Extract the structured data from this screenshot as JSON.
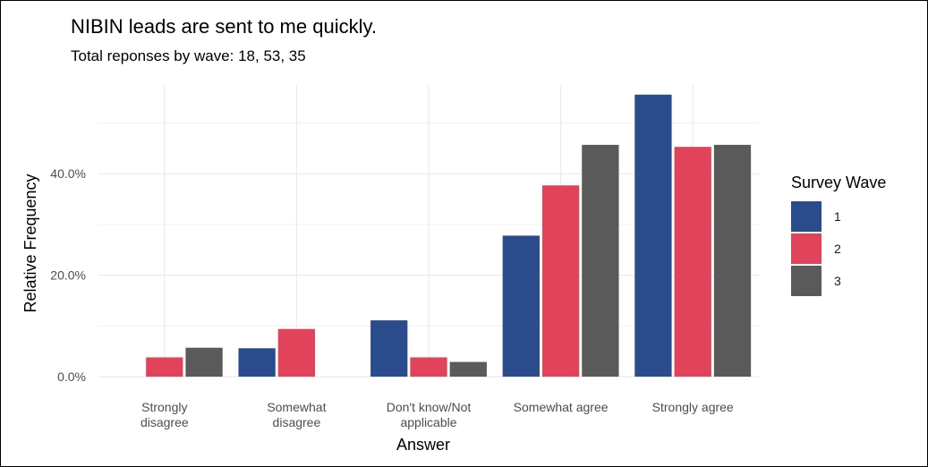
{
  "chart_data": {
    "type": "bar",
    "title": "NIBIN leads are sent to me quickly.",
    "subtitle": "Total reponses by wave: 18, 53, 35",
    "xlabel": "Answer",
    "ylabel": "Relative Frequency",
    "categories": [
      [
        "Strongly",
        "disagree"
      ],
      [
        "Somewhat",
        "disagree"
      ],
      [
        "Don't know/Not",
        "applicable"
      ],
      [
        "Somewhat agree"
      ],
      [
        "Strongly agree"
      ]
    ],
    "series": [
      {
        "name": "1",
        "color": "#2b4c8c",
        "values": [
          0,
          5.6,
          11.1,
          27.8,
          55.6
        ]
      },
      {
        "name": "2",
        "color": "#e0435a",
        "values": [
          3.8,
          9.4,
          3.8,
          37.7,
          45.3
        ]
      },
      {
        "name": "3",
        "color": "#5a5a5a",
        "values": [
          5.7,
          0,
          2.9,
          45.7,
          45.7
        ]
      }
    ],
    "yticks": [
      "0.0%",
      "20.0%",
      "40.0%"
    ],
    "ylim": [
      0,
      57.5
    ],
    "grid": true,
    "legend": {
      "title": "Survey Wave",
      "position": "right"
    }
  }
}
